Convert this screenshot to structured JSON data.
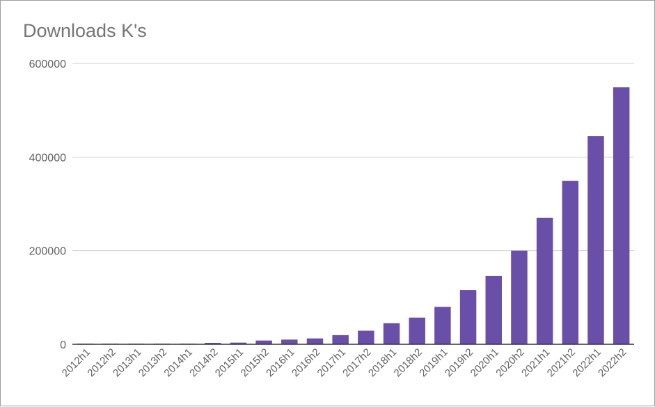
{
  "chart_data": {
    "type": "bar",
    "title": "Downloads K's",
    "xlabel": "",
    "ylabel": "",
    "categories": [
      "2012h1",
      "2012h2",
      "2013h1",
      "2013h2",
      "2014h1",
      "2014h2",
      "2015h1",
      "2015h2",
      "2016h1",
      "2016h2",
      "2017h1",
      "2017h2",
      "2018h1",
      "2018h2",
      "2019h1",
      "2019h2",
      "2020h1",
      "2020h2",
      "2021h1",
      "2021h2",
      "2022h1",
      "2022h2"
    ],
    "values": [
      500,
      700,
      800,
      900,
      1000,
      3000,
      3500,
      8000,
      10000,
      12500,
      19500,
      29000,
      45000,
      57000,
      80000,
      116000,
      146000,
      200000,
      270000,
      349000,
      445000,
      549000
    ],
    "ylim": [
      0,
      600000
    ],
    "yticks": [
      "0",
      "200000",
      "400000",
      "600000"
    ],
    "grid": true,
    "legend": "none",
    "bar_color": "#6a4fa8"
  }
}
